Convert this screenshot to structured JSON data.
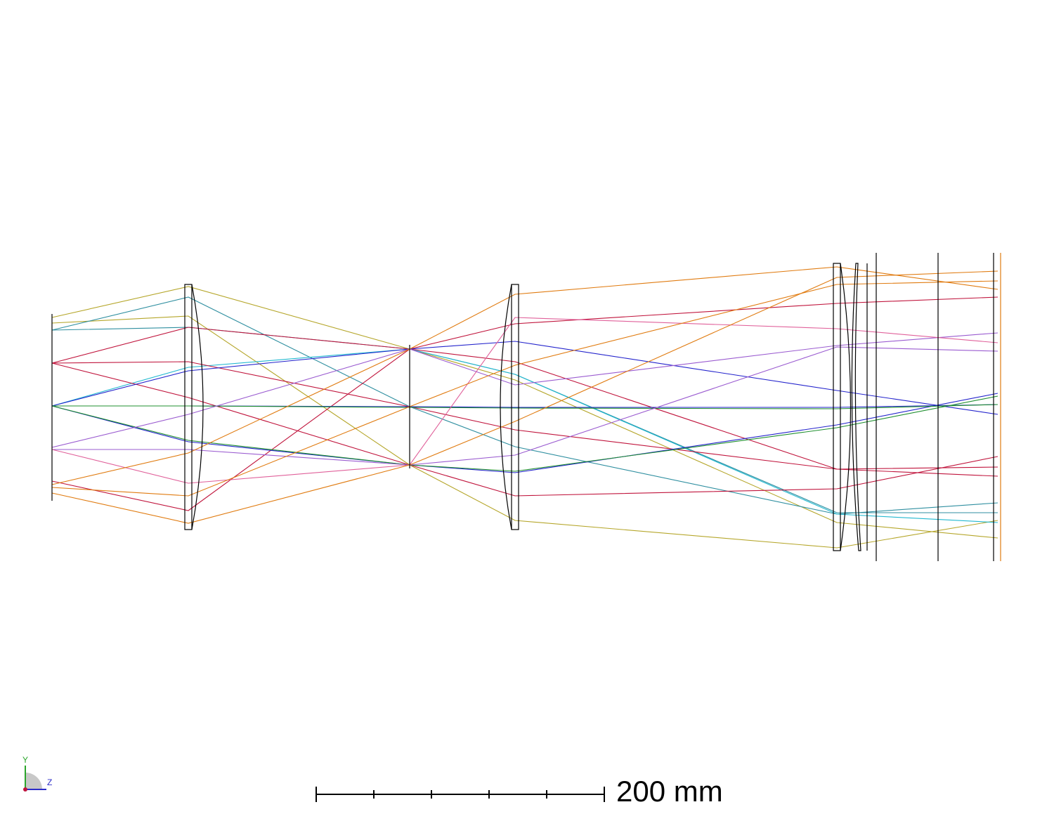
{
  "scale_bar": {
    "label": "200 mm"
  },
  "axis_triad": {
    "y_label": "Y",
    "z_label": "Z"
  },
  "colors": {
    "yellow": "#b5a62a",
    "teal": "#2f8fa0",
    "cyan": "#22b8d0",
    "red": "#c0143c",
    "blue": "#2323cc",
    "green": "#1f8f2f",
    "purple": "#9a5bd0",
    "pink": "#e0609a",
    "orange": "#e07b10",
    "element": "#000000"
  }
}
